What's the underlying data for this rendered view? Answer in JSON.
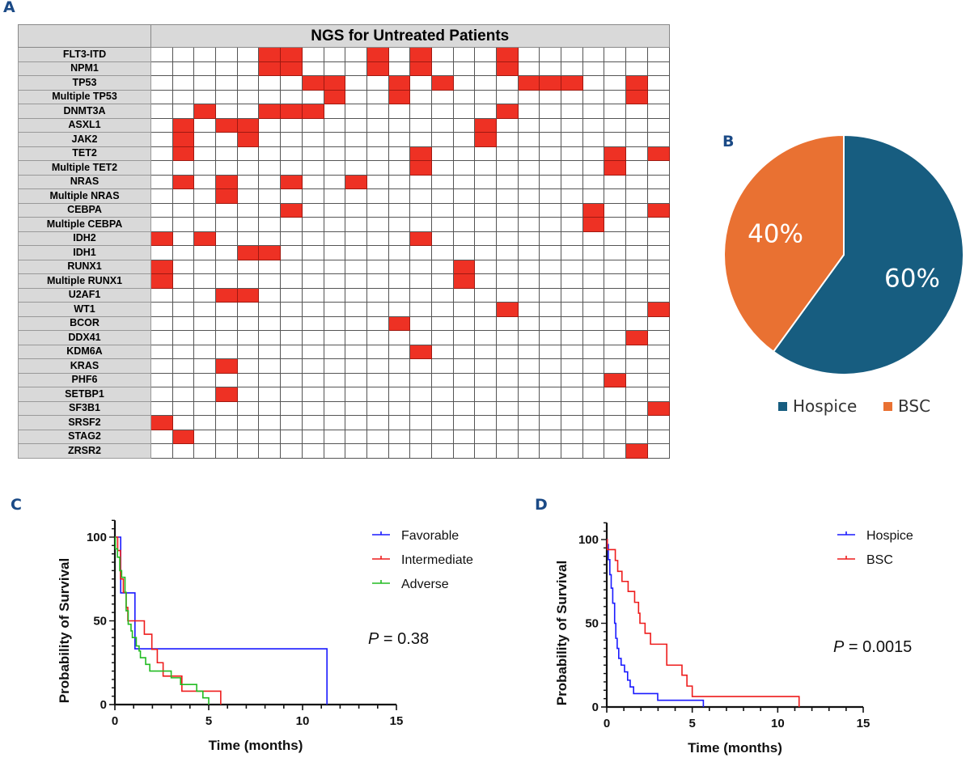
{
  "panels": {
    "a_letter": "A",
    "b_letter": "B",
    "c_letter": "C",
    "d_letter": "D"
  },
  "chart_data": [
    {
      "type": "heatmap",
      "panel": "A",
      "title": "NGS for Untreated Patients",
      "num_patients": 24,
      "colors": {
        "mutated": "#ee3124",
        "wildtype": "#ffffff",
        "header": "#d9d9d9"
      },
      "genes": [
        {
          "name": "FLT3-ITD",
          "mutated_patients": [
            5,
            6,
            10,
            12,
            16
          ]
        },
        {
          "name": "NPM1",
          "mutated_patients": [
            5,
            6,
            10,
            12,
            16
          ]
        },
        {
          "name": "TP53",
          "mutated_patients": [
            7,
            8,
            11,
            13,
            17,
            18,
            19,
            22
          ]
        },
        {
          "name": "Multiple TP53",
          "mutated_patients": [
            8,
            11,
            22
          ]
        },
        {
          "name": "DNMT3A",
          "mutated_patients": [
            2,
            5,
            6,
            7,
            16
          ]
        },
        {
          "name": "ASXL1",
          "mutated_patients": [
            1,
            3,
            4,
            15
          ]
        },
        {
          "name": "JAK2",
          "mutated_patients": [
            1,
            4,
            15
          ]
        },
        {
          "name": "TET2",
          "mutated_patients": [
            1,
            12,
            21,
            23
          ]
        },
        {
          "name": "Multiple TET2",
          "mutated_patients": [
            12,
            21
          ]
        },
        {
          "name": "NRAS",
          "mutated_patients": [
            1,
            3,
            6,
            9
          ]
        },
        {
          "name": "Multiple NRAS",
          "mutated_patients": [
            3
          ]
        },
        {
          "name": "CEBPA",
          "mutated_patients": [
            6,
            20,
            23
          ]
        },
        {
          "name": "Multiple CEBPA",
          "mutated_patients": [
            20
          ]
        },
        {
          "name": "IDH2",
          "mutated_patients": [
            0,
            2,
            12
          ]
        },
        {
          "name": "IDH1",
          "mutated_patients": [
            4,
            5
          ]
        },
        {
          "name": "RUNX1",
          "mutated_patients": [
            0,
            14
          ]
        },
        {
          "name": "Multiple RUNX1",
          "mutated_patients": [
            0,
            14
          ]
        },
        {
          "name": "U2AF1",
          "mutated_patients": [
            3,
            4
          ]
        },
        {
          "name": "WT1",
          "mutated_patients": [
            16,
            23
          ]
        },
        {
          "name": "BCOR",
          "mutated_patients": [
            11
          ]
        },
        {
          "name": "DDX41",
          "mutated_patients": [
            22
          ]
        },
        {
          "name": "KDM6A",
          "mutated_patients": [
            12
          ]
        },
        {
          "name": "KRAS",
          "mutated_patients": [
            3
          ]
        },
        {
          "name": "PHF6",
          "mutated_patients": [
            21
          ]
        },
        {
          "name": "SETBP1",
          "mutated_patients": [
            3
          ]
        },
        {
          "name": "SF3B1",
          "mutated_patients": [
            23
          ]
        },
        {
          "name": "SRSF2",
          "mutated_patients": [
            0
          ]
        },
        {
          "name": "STAG2",
          "mutated_patients": [
            1
          ]
        },
        {
          "name": "ZRSR2",
          "mutated_patients": [
            22
          ]
        }
      ]
    },
    {
      "type": "pie",
      "panel": "B",
      "slices": [
        {
          "label": "Hospice",
          "value": 60,
          "display": "60%",
          "color": "#175d80"
        },
        {
          "label": "BSC",
          "value": 40,
          "display": "40%",
          "color": "#e97132"
        }
      ],
      "legend_position": "bottom"
    },
    {
      "type": "line",
      "subtype": "kaplan-meier",
      "panel": "C",
      "xlabel": "Time (months)",
      "ylabel": "Probability of Survival",
      "xlim": [
        0,
        15
      ],
      "ylim": [
        0,
        110
      ],
      "xticks": [
        0,
        5,
        10,
        15
      ],
      "yticks": [
        0,
        50,
        100
      ],
      "legend_position": "top-right",
      "annotation": {
        "p_symbol": "P",
        "p_text": " = 0.38"
      },
      "series": [
        {
          "name": "Favorable",
          "color": "#1a1aff",
          "steps": [
            [
              0,
              100
            ],
            [
              0.31,
              66.7
            ],
            [
              1.07,
              33.3
            ],
            [
              11.3,
              0
            ]
          ],
          "end": 11.3
        },
        {
          "name": "Intermediate",
          "color": "#ee1c1c",
          "steps": [
            [
              0,
              100
            ],
            [
              0.15,
              92
            ],
            [
              0.3,
              75
            ],
            [
              0.45,
              67
            ],
            [
              0.6,
              58
            ],
            [
              0.69,
              50
            ],
            [
              1.57,
              42
            ],
            [
              1.97,
              33
            ],
            [
              2.26,
              25
            ],
            [
              2.57,
              17
            ],
            [
              3.57,
              8
            ],
            [
              5.64,
              0
            ]
          ],
          "end": 5.64
        },
        {
          "name": "Adverse",
          "color": "#22bb22",
          "steps": [
            [
              0,
              100
            ],
            [
              0.03,
              93
            ],
            [
              0.14,
              88
            ],
            [
              0.26,
              80
            ],
            [
              0.36,
              76
            ],
            [
              0.5,
              76
            ],
            [
              0.54,
              67
            ],
            [
              0.6,
              56
            ],
            [
              0.71,
              48
            ],
            [
              0.86,
              44
            ],
            [
              0.93,
              40
            ],
            [
              1.14,
              35
            ],
            [
              1.29,
              32
            ],
            [
              1.36,
              28
            ],
            [
              1.64,
              24
            ],
            [
              1.86,
              20
            ],
            [
              3.0,
              16
            ],
            [
              3.5,
              12
            ],
            [
              4.36,
              8
            ],
            [
              4.69,
              4
            ],
            [
              5.0,
              0
            ]
          ],
          "end": 5.0
        }
      ]
    },
    {
      "type": "line",
      "subtype": "kaplan-meier",
      "panel": "D",
      "xlabel": "Time (months)",
      "ylabel": "Probability of Survival",
      "xlim": [
        0,
        15
      ],
      "ylim": [
        0,
        110
      ],
      "xticks": [
        0,
        5,
        10,
        15
      ],
      "yticks": [
        0,
        50,
        100
      ],
      "legend_position": "top-right",
      "annotation": {
        "p_symbol": "P",
        "p_text": " = 0.0015"
      },
      "series": [
        {
          "name": "Hospice",
          "color": "#1a1aff",
          "steps": [
            [
              0,
              100
            ],
            [
              0.03,
              97
            ],
            [
              0.09,
              88
            ],
            [
              0.18,
              79
            ],
            [
              0.26,
              71
            ],
            [
              0.35,
              62
            ],
            [
              0.46,
              50
            ],
            [
              0.53,
              41
            ],
            [
              0.61,
              35
            ],
            [
              0.7,
              29
            ],
            [
              0.84,
              25
            ],
            [
              1.04,
              21
            ],
            [
              1.22,
              16
            ],
            [
              1.37,
              12
            ],
            [
              1.57,
              8
            ],
            [
              2.98,
              4
            ],
            [
              5.65,
              0
            ]
          ],
          "end": 5.65
        },
        {
          "name": "BSC",
          "color": "#ee1c1c",
          "steps": [
            [
              0,
              100
            ],
            [
              0.03,
              94
            ],
            [
              0.5,
              87.5
            ],
            [
              0.64,
              81
            ],
            [
              0.89,
              75
            ],
            [
              1.25,
              69
            ],
            [
              1.63,
              62.5
            ],
            [
              1.86,
              56
            ],
            [
              1.94,
              50
            ],
            [
              2.24,
              44
            ],
            [
              2.56,
              37.5
            ],
            [
              3.51,
              25
            ],
            [
              4.4,
              19
            ],
            [
              4.69,
              12.5
            ],
            [
              5.0,
              6.25
            ],
            [
              11.25,
              0
            ]
          ],
          "end": 11.25
        }
      ]
    }
  ]
}
